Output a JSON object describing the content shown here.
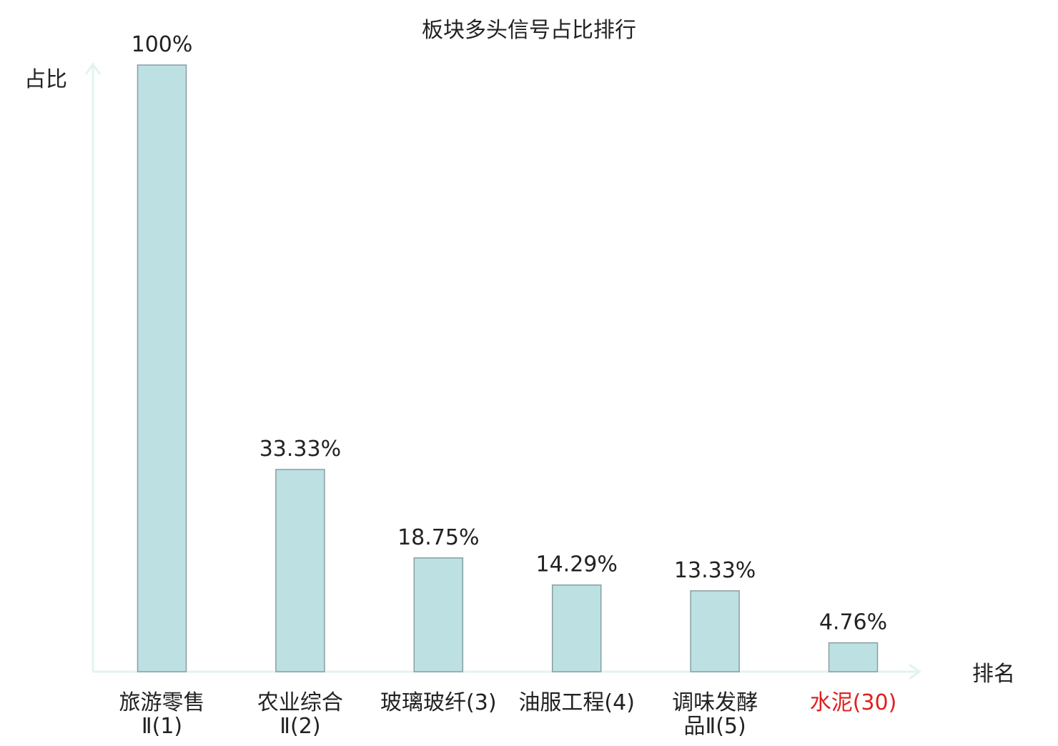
{
  "chart_data": {
    "type": "bar",
    "title": "板块多头信号占比排行",
    "ylabel": "占比",
    "xlabel": "排名",
    "ylim": [
      0,
      100
    ],
    "grid": false,
    "legend": "none",
    "categories": [
      {
        "label": "旅游零售",
        "sub": "Ⅱ(1)",
        "highlight": false
      },
      {
        "label": "农业综合",
        "sub": "Ⅱ(2)",
        "highlight": false
      },
      {
        "label": "玻璃玻纤(3)",
        "sub": "",
        "highlight": false
      },
      {
        "label": "油服工程(4)",
        "sub": "",
        "highlight": false
      },
      {
        "label": "调味发酵",
        "sub": "品Ⅱ(5)",
        "highlight": false
      },
      {
        "label": "水泥(30)",
        "sub": "",
        "highlight": true
      }
    ],
    "values": [
      100,
      33.33,
      18.75,
      14.29,
      13.33,
      4.76
    ],
    "value_labels": [
      "100%",
      "33.33%",
      "18.75%",
      "14.29%",
      "13.33%",
      "4.76%"
    ],
    "colors": {
      "bar_fill": "#bde0e3",
      "bar_stroke": "#889fa2",
      "axis": "#e2f3f0",
      "text": "#222222",
      "highlight": "#e02020"
    }
  }
}
